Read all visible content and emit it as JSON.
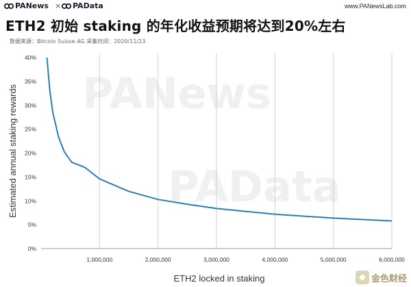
{
  "header": {
    "brand_left": "PANews",
    "brand_times": "×",
    "brand_right": "PAData",
    "site_url": "www.PANewsLab.com"
  },
  "title": "ETH2 初始 staking 的年化收益预期将达到20%左右",
  "source_line": "数据来源：Bitcoin Suisse AG  采集时间：2020/11/23",
  "watermarks": [
    "PANews",
    "PAData"
  ],
  "corner_badge": "金色财经",
  "icons": {
    "brand_logo": "panews-logo-icon",
    "corner_logo": "jinse-logo-icon"
  },
  "colors": {
    "line": "#2b7bb9",
    "grid": "#cfcfcf",
    "axis": "#999999"
  },
  "chart_data": {
    "type": "line",
    "xlabel": "ETH2 locked in staking",
    "ylabel": "Estimated annual staking rewards",
    "xlim": [
      0,
      6000000
    ],
    "ylim": [
      0,
      40
    ],
    "x_ticks": [
      1000000,
      2000000,
      3000000,
      4000000,
      5000000,
      6000000
    ],
    "x_tick_labels": [
      "1,000,000",
      "2,000,000",
      "3,000,000",
      "4,000,000",
      "5,000,000",
      "6,000,000"
    ],
    "y_ticks": [
      0,
      5,
      10,
      15,
      20,
      25,
      30,
      35,
      40
    ],
    "y_tick_labels": [
      "0%",
      "5%",
      "10%",
      "15%",
      "20%",
      "25%",
      "30%",
      "35%",
      "40%"
    ],
    "grid": "vertical",
    "series": [
      {
        "x": [
          100000,
          150000,
          200000,
          300000,
          400000,
          524288,
          750000,
          1000000,
          1500000,
          2000000,
          2500000,
          3000000,
          3500000,
          4000000,
          4500000,
          5000000,
          5500000,
          6000000
        ],
        "values": [
          40,
          33.0,
          28.5,
          23.3,
          20.2,
          18.1,
          17.0,
          14.6,
          12.0,
          10.3,
          9.3,
          8.4,
          7.8,
          7.2,
          6.8,
          6.4,
          6.1,
          5.8
        ]
      }
    ]
  }
}
